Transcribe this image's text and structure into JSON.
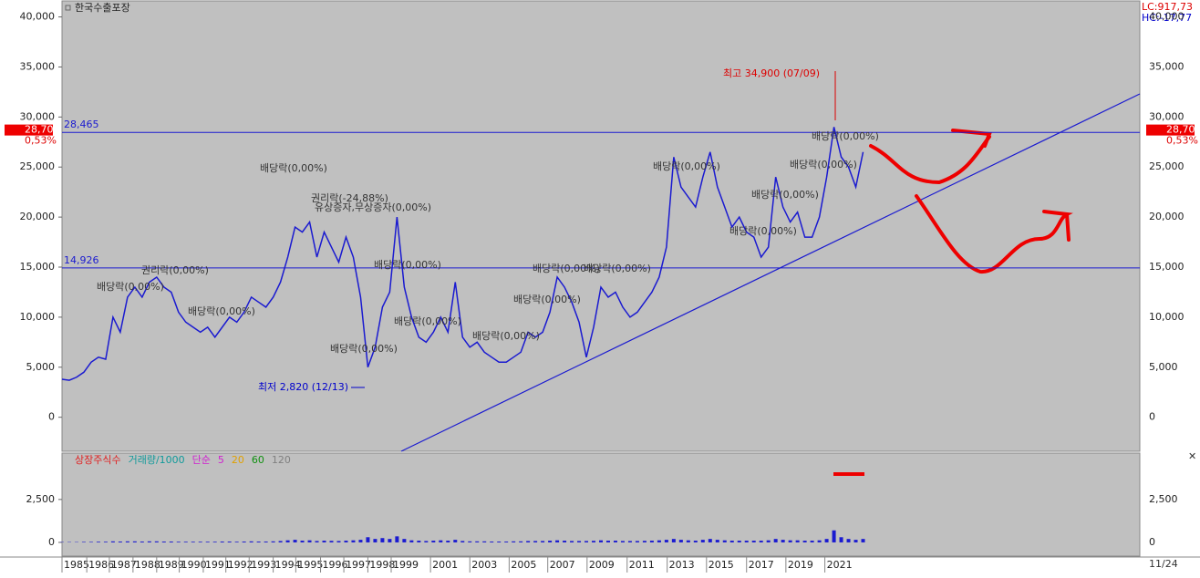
{
  "chart_data": [
    {
      "type": "line",
      "title": "한국수출포장",
      "color": "#1a1ad0",
      "values": [
        3800,
        3700,
        4000,
        4500,
        5500,
        6000,
        5800,
        10000,
        8500,
        12000,
        13000,
        12000,
        13500,
        14000,
        13000,
        12500,
        10500,
        9500,
        9000,
        8500,
        9000,
        8000,
        9000,
        10000,
        9500,
        10500,
        12000,
        11500,
        11000,
        12000,
        13500,
        16000,
        19000,
        18500,
        19500,
        16000,
        18500,
        17000,
        15500,
        18000,
        16000,
        12000,
        5000,
        7000,
        11000,
        12500,
        20000,
        13000,
        10000,
        8000,
        7500,
        8500,
        10000,
        8500,
        13500,
        8000,
        7000,
        7500,
        6500,
        6000,
        5500,
        5500,
        6000,
        6500,
        8500,
        8000,
        8500,
        10500,
        14000,
        13000,
        11500,
        9500,
        6000,
        9000,
        13000,
        12000,
        12500,
        11000,
        10000,
        10500,
        11500,
        12500,
        14000,
        17000,
        26000,
        23000,
        22000,
        21000,
        24000,
        26500,
        23000,
        21000,
        19000,
        20000,
        18500,
        18000,
        16000,
        17000,
        24000,
        21000,
        19500,
        20500,
        18000,
        18000,
        20000,
        24000,
        29000,
        26000,
        25000,
        23000,
        26500
      ],
      "xlim": [
        0,
        148
      ],
      "xticks": [
        {
          "value": 0,
          "label": "1985"
        },
        {
          "value": 3.4,
          "label": "1986"
        },
        {
          "value": 6.5,
          "label": "1987"
        },
        {
          "value": 9.75,
          "label": "1988"
        },
        {
          "value": 13,
          "label": "1989"
        },
        {
          "value": 16.1,
          "label": "1990"
        },
        {
          "value": 19.4,
          "label": "1991"
        },
        {
          "value": 22.5,
          "label": "1992"
        },
        {
          "value": 25.7,
          "label": "1993"
        },
        {
          "value": 29,
          "label": "1994"
        },
        {
          "value": 32.1,
          "label": "1995"
        },
        {
          "value": 35.5,
          "label": "1996"
        },
        {
          "value": 38.7,
          "label": "1997"
        },
        {
          "value": 42,
          "label": "1998"
        },
        {
          "value": 45.2,
          "label": "1999"
        },
        {
          "value": 50.6,
          "label": "2001"
        },
        {
          "value": 56,
          "label": "2003"
        },
        {
          "value": 61.4,
          "label": "2005"
        },
        {
          "value": 66.7,
          "label": "2007"
        },
        {
          "value": 72.1,
          "label": "2009"
        },
        {
          "value": 77.6,
          "label": "2011"
        },
        {
          "value": 83.1,
          "label": "2013"
        },
        {
          "value": 88.5,
          "label": "2015"
        },
        {
          "value": 94,
          "label": "2017"
        },
        {
          "value": 99.4,
          "label": "2019"
        },
        {
          "value": 104.75,
          "label": "2021"
        }
      ],
      "ylim": [
        -3400,
        41600
      ],
      "yticks": [
        0,
        {
          "value": 5000,
          "label": "5,000"
        },
        {
          "value": 10000,
          "label": "10,000"
        },
        {
          "value": 15000,
          "label": "15,000"
        },
        {
          "value": 20000,
          "label": "20,000"
        },
        {
          "value": 25000,
          "label": "25,000"
        },
        {
          "value": 30000,
          "label": "30,000"
        },
        {
          "value": 35000,
          "label": "35,000"
        },
        {
          "value": 40000,
          "label": "40,000"
        }
      ],
      "hlines": [
        {
          "value": 28465,
          "label": "28,465"
        },
        {
          "value": 14926,
          "label": "14,926"
        }
      ],
      "last": {
        "value": 28700,
        "label": "28,700"
      },
      "change": {
        "value": 0.53,
        "label": "0,53%"
      },
      "lc": "LC:917,73",
      "hc": "HC:-17,77",
      "high": "최고 34,900 (07/09)",
      "low": "최저 2,820 (12/13)",
      "events": [
        "배당락(0,00%)",
        "권리락(-24,88%)",
        "유상증자,무상증자(0,00%)",
        "배당락(0,00%)",
        "권리락(0,00%)",
        "배당락(0,00%)",
        "배당락(0,00%)",
        "배당락(0,00%)",
        "배당락(0,00%)",
        "배당락(0,00%)",
        "배당락(0,00%)",
        "배당락(0,00%)",
        "배당락(0,00%)",
        "배당락(0,00%)",
        "배당락(0,00%)",
        "배당락(0,00%)",
        "배당락(0,00%)",
        "배당락(0,00%)"
      ],
      "date_label": "11/24"
    },
    {
      "type": "bar",
      "color": "#1a1ad0",
      "legend": [
        "상장주식수",
        "거래량/1000",
        "단순",
        "5",
        "20",
        "60",
        "120"
      ],
      "legend_colors": [
        "#e02020",
        "#109a9a",
        "#d020d0",
        "#d020d0",
        "#e0a000",
        "#109010",
        "#808080"
      ],
      "values": [
        20,
        20,
        20,
        30,
        30,
        40,
        40,
        60,
        50,
        60,
        60,
        50,
        60,
        60,
        50,
        50,
        40,
        40,
        40,
        40,
        40,
        40,
        50,
        50,
        40,
        50,
        60,
        50,
        50,
        60,
        80,
        120,
        150,
        100,
        120,
        80,
        100,
        90,
        80,
        100,
        120,
        150,
        300,
        200,
        250,
        200,
        350,
        200,
        120,
        100,
        80,
        100,
        120,
        100,
        150,
        80,
        60,
        60,
        60,
        50,
        50,
        50,
        60,
        60,
        80,
        80,
        80,
        100,
        120,
        100,
        80,
        80,
        80,
        90,
        120,
        100,
        100,
        80,
        80,
        80,
        90,
        100,
        120,
        150,
        200,
        150,
        120,
        100,
        150,
        200,
        150,
        120,
        100,
        100,
        100,
        100,
        100,
        120,
        200,
        150,
        120,
        120,
        100,
        100,
        120,
        200,
        700,
        300,
        200,
        150,
        200
      ],
      "ylim": [
        -800,
        5200
      ],
      "yticks": [
        0,
        {
          "value": 2500,
          "label": "2,500"
        }
      ]
    }
  ]
}
